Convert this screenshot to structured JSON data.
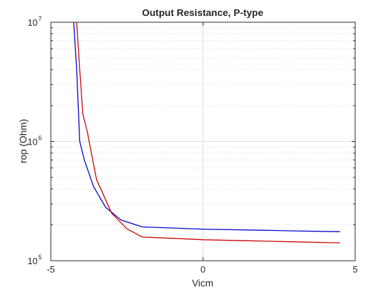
{
  "chart_data": {
    "type": "line",
    "title": "Output Resistance, P-type",
    "xlabel": "Vicm",
    "ylabel": "rop (Ohm)",
    "xlim": [
      -5,
      5
    ],
    "ylim": [
      100000,
      10000000
    ],
    "yscale": "log",
    "grid": true,
    "xticks": [
      "-5",
      "0",
      "5"
    ],
    "yticks": [
      {
        "base": "10",
        "exp": "5"
      },
      {
        "base": "10",
        "exp": "6"
      },
      {
        "base": "10",
        "exp": "7"
      }
    ],
    "series": [
      {
        "color": "#0000cc",
        "x": [
          -4.25,
          -4.15,
          -4.05,
          -3.9,
          -3.6,
          -3.2,
          -2.7,
          -2.0,
          -1.0,
          0.0,
          1.5,
          3.0,
          4.5
        ],
        "values": [
          10000000,
          4000000,
          1000000,
          700000,
          420000,
          280000,
          220000,
          192000,
          188000,
          184000,
          181000,
          178000,
          175000
        ]
      },
      {
        "color": "#cc0000",
        "x": [
          -4.15,
          -4.05,
          -3.95,
          -3.8,
          -3.5,
          -3.0,
          -2.5,
          -2.0,
          -1.0,
          0.0,
          1.5,
          3.0,
          4.5
        ],
        "values": [
          10000000,
          4000000,
          1700000,
          1200000,
          480000,
          250000,
          185000,
          158000,
          154000,
          150000,
          147000,
          144000,
          141000
        ]
      }
    ]
  }
}
